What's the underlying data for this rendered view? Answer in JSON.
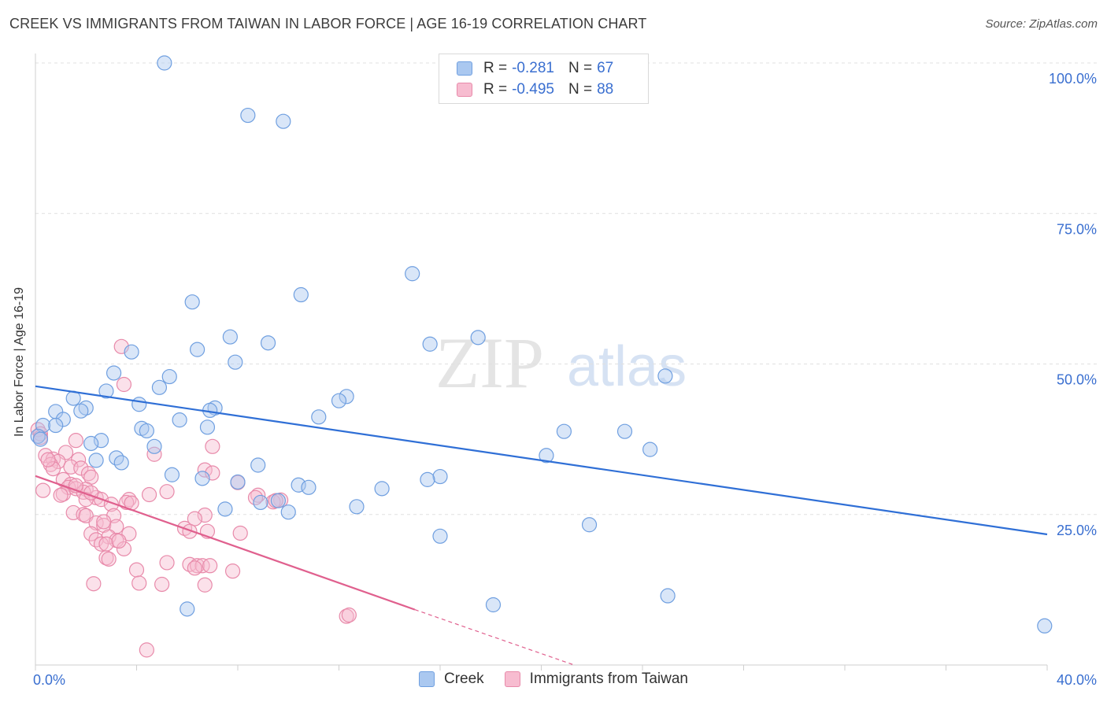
{
  "title": "CREEK VS IMMIGRANTS FROM TAIWAN IN LABOR FORCE | AGE 16-19 CORRELATION CHART",
  "source": "Source: ZipAtlas.com",
  "watermark": {
    "zip": "ZIP",
    "atlas": "atlas"
  },
  "legend": {
    "r_label": "R =",
    "n_label": "N =",
    "series": [
      {
        "name": "Creek",
        "r": "-0.281",
        "n": "67",
        "fill": "#aac8f0",
        "stroke": "#6f9fe0"
      },
      {
        "name": "Immigrants from Taiwan",
        "r": "-0.495",
        "n": "88",
        "fill": "#f7bcd0",
        "stroke": "#e88aaa"
      }
    ]
  },
  "colors": {
    "creek_line": "#2f6fd6",
    "taiwan_line": "#e0608e",
    "axis_text": "#3a6fd0",
    "grid": "#e0e0e0"
  },
  "chart_data": {
    "type": "scatter",
    "title": "CREEK VS IMMIGRANTS FROM TAIWAN IN LABOR FORCE | AGE 16-19 CORRELATION CHART",
    "xlabel": "",
    "ylabel": "In Labor Force | Age 16-19",
    "xlim": [
      0,
      40
    ],
    "ylim": [
      0,
      100
    ],
    "x_tick_labels": [
      {
        "value": 0,
        "label": "0.0%"
      },
      {
        "value": 40,
        "label": "40.0%"
      }
    ],
    "y_tick_labels": [
      {
        "value": 25,
        "label": "25.0%"
      },
      {
        "value": 50,
        "label": "50.0%"
      },
      {
        "value": 75,
        "label": "75.0%"
      },
      {
        "value": 100,
        "label": "100.0%"
      }
    ],
    "series": [
      {
        "name": "Creek",
        "points": [
          [
            5.1,
            100
          ],
          [
            8.4,
            91.3
          ],
          [
            9.8,
            90.3
          ],
          [
            14.9,
            65
          ],
          [
            10.5,
            61.5
          ],
          [
            6.2,
            60.3
          ],
          [
            7.7,
            54.5
          ],
          [
            9.2,
            53.5
          ],
          [
            17.5,
            54.4
          ],
          [
            15.6,
            53.3
          ],
          [
            3.8,
            52
          ],
          [
            6.4,
            52.4
          ],
          [
            7.9,
            50.3
          ],
          [
            3.1,
            48.5
          ],
          [
            5.3,
            47.9
          ],
          [
            4.9,
            46.1
          ],
          [
            2.8,
            45.5
          ],
          [
            12.3,
            44.6
          ],
          [
            1.5,
            44.3
          ],
          [
            12.0,
            43.9
          ],
          [
            4.1,
            43.3
          ],
          [
            2.0,
            42.7
          ],
          [
            7.1,
            42.7
          ],
          [
            6.9,
            42.3
          ],
          [
            1.8,
            42.2
          ],
          [
            0.8,
            42.1
          ],
          [
            1.1,
            40.8
          ],
          [
            11.2,
            41.2
          ],
          [
            0.3,
            39.8
          ],
          [
            0.8,
            39.8
          ],
          [
            5.7,
            40.7
          ],
          [
            6.8,
            39.5
          ],
          [
            4.2,
            39.3
          ],
          [
            4.4,
            38.9
          ],
          [
            20.9,
            38.8
          ],
          [
            23.3,
            38.8
          ],
          [
            0.1,
            38.0
          ],
          [
            2.6,
            37.3
          ],
          [
            2.2,
            36.8
          ],
          [
            4.7,
            36.3
          ],
          [
            24.3,
            35.8
          ],
          [
            20.2,
            34.8
          ],
          [
            3.2,
            34.4
          ],
          [
            2.4,
            34.0
          ],
          [
            3.4,
            33.6
          ],
          [
            8.8,
            33.2
          ],
          [
            5.4,
            31.6
          ],
          [
            6.6,
            31.0
          ],
          [
            16.0,
            31.3
          ],
          [
            15.5,
            30.8
          ],
          [
            8.0,
            30.4
          ],
          [
            10.4,
            29.9
          ],
          [
            10.8,
            29.5
          ],
          [
            13.7,
            29.3
          ],
          [
            8.9,
            27.0
          ],
          [
            9.6,
            27.3
          ],
          [
            12.7,
            26.3
          ],
          [
            7.5,
            25.9
          ],
          [
            10.0,
            25.4
          ],
          [
            21.9,
            23.3
          ],
          [
            16.0,
            21.4
          ],
          [
            24.9,
            48.0
          ],
          [
            6.0,
            9.3
          ],
          [
            18.1,
            10.0
          ],
          [
            25.0,
            11.5
          ],
          [
            39.9,
            6.5
          ],
          [
            0.2,
            37.5
          ]
        ]
      },
      {
        "name": "Immigrants from Taiwan",
        "points": [
          [
            3.4,
            52.9
          ],
          [
            3.5,
            46.6
          ],
          [
            0.1,
            39.1
          ],
          [
            0.2,
            38.4
          ],
          [
            1.6,
            37.3
          ],
          [
            0.4,
            34.8
          ],
          [
            0.7,
            34.2
          ],
          [
            4.7,
            35.0
          ],
          [
            1.2,
            35.3
          ],
          [
            0.9,
            33.8
          ],
          [
            1.7,
            34.1
          ],
          [
            0.6,
            33.3
          ],
          [
            1.4,
            32.9
          ],
          [
            0.7,
            32.6
          ],
          [
            1.8,
            32.7
          ],
          [
            7.0,
            36.3
          ],
          [
            6.7,
            32.4
          ],
          [
            7.0,
            31.9
          ],
          [
            2.1,
            31.8
          ],
          [
            2.2,
            31.2
          ],
          [
            1.1,
            30.8
          ],
          [
            8.0,
            30.3
          ],
          [
            1.4,
            30.0
          ],
          [
            1.3,
            29.5
          ],
          [
            1.6,
            29.3
          ],
          [
            2.0,
            29.2
          ],
          [
            1.9,
            28.7
          ],
          [
            0.3,
            29.0
          ],
          [
            1.1,
            28.4
          ],
          [
            1.0,
            28.2
          ],
          [
            4.5,
            28.3
          ],
          [
            5.2,
            28.8
          ],
          [
            2.4,
            27.8
          ],
          [
            2.0,
            27.5
          ],
          [
            2.6,
            27.5
          ],
          [
            3.7,
            27.5
          ],
          [
            3.6,
            27.0
          ],
          [
            3.0,
            26.7
          ],
          [
            8.8,
            28.2
          ],
          [
            8.7,
            27.8
          ],
          [
            9.7,
            27.4
          ],
          [
            9.4,
            27.1
          ],
          [
            1.5,
            25.3
          ],
          [
            1.9,
            25.0
          ],
          [
            2.0,
            24.8
          ],
          [
            3.1,
            24.8
          ],
          [
            6.7,
            24.9
          ],
          [
            6.3,
            24.3
          ],
          [
            2.4,
            23.6
          ],
          [
            2.7,
            23.2
          ],
          [
            3.2,
            23.0
          ],
          [
            5.9,
            22.7
          ],
          [
            6.1,
            22.2
          ],
          [
            6.8,
            22.2
          ],
          [
            8.1,
            21.9
          ],
          [
            2.2,
            21.8
          ],
          [
            3.7,
            21.8
          ],
          [
            2.9,
            21.3
          ],
          [
            2.4,
            20.8
          ],
          [
            3.2,
            20.7
          ],
          [
            2.6,
            20.1
          ],
          [
            2.8,
            20.1
          ],
          [
            3.5,
            19.3
          ],
          [
            2.8,
            17.8
          ],
          [
            2.9,
            17.6
          ],
          [
            5.2,
            17.0
          ],
          [
            6.1,
            16.7
          ],
          [
            6.4,
            16.5
          ],
          [
            6.6,
            16.5
          ],
          [
            6.3,
            16.1
          ],
          [
            7.8,
            15.6
          ],
          [
            4.0,
            15.8
          ],
          [
            4.1,
            13.6
          ],
          [
            5.0,
            13.4
          ],
          [
            6.7,
            13.3
          ],
          [
            2.3,
            13.5
          ],
          [
            12.3,
            8.1
          ],
          [
            12.4,
            8.3
          ],
          [
            4.4,
            2.5
          ],
          [
            0.2,
            37.8
          ],
          [
            0.5,
            34.1
          ],
          [
            2.2,
            28.6
          ],
          [
            3.8,
            26.9
          ],
          [
            9.5,
            27.3
          ],
          [
            2.7,
            23.8
          ],
          [
            3.3,
            20.6
          ],
          [
            6.9,
            16.5
          ],
          [
            1.6,
            29.8
          ]
        ]
      }
    ],
    "trendlines": [
      {
        "series": "Creek",
        "x": [
          0,
          40
        ],
        "y": [
          46.3,
          21.7
        ]
      },
      {
        "series": "Immigrants from Taiwan",
        "x": [
          0,
          15.0
        ],
        "y": [
          31.4,
          9.2
        ],
        "dashed_extension_to": [
          21.3,
          0
        ]
      }
    ]
  }
}
